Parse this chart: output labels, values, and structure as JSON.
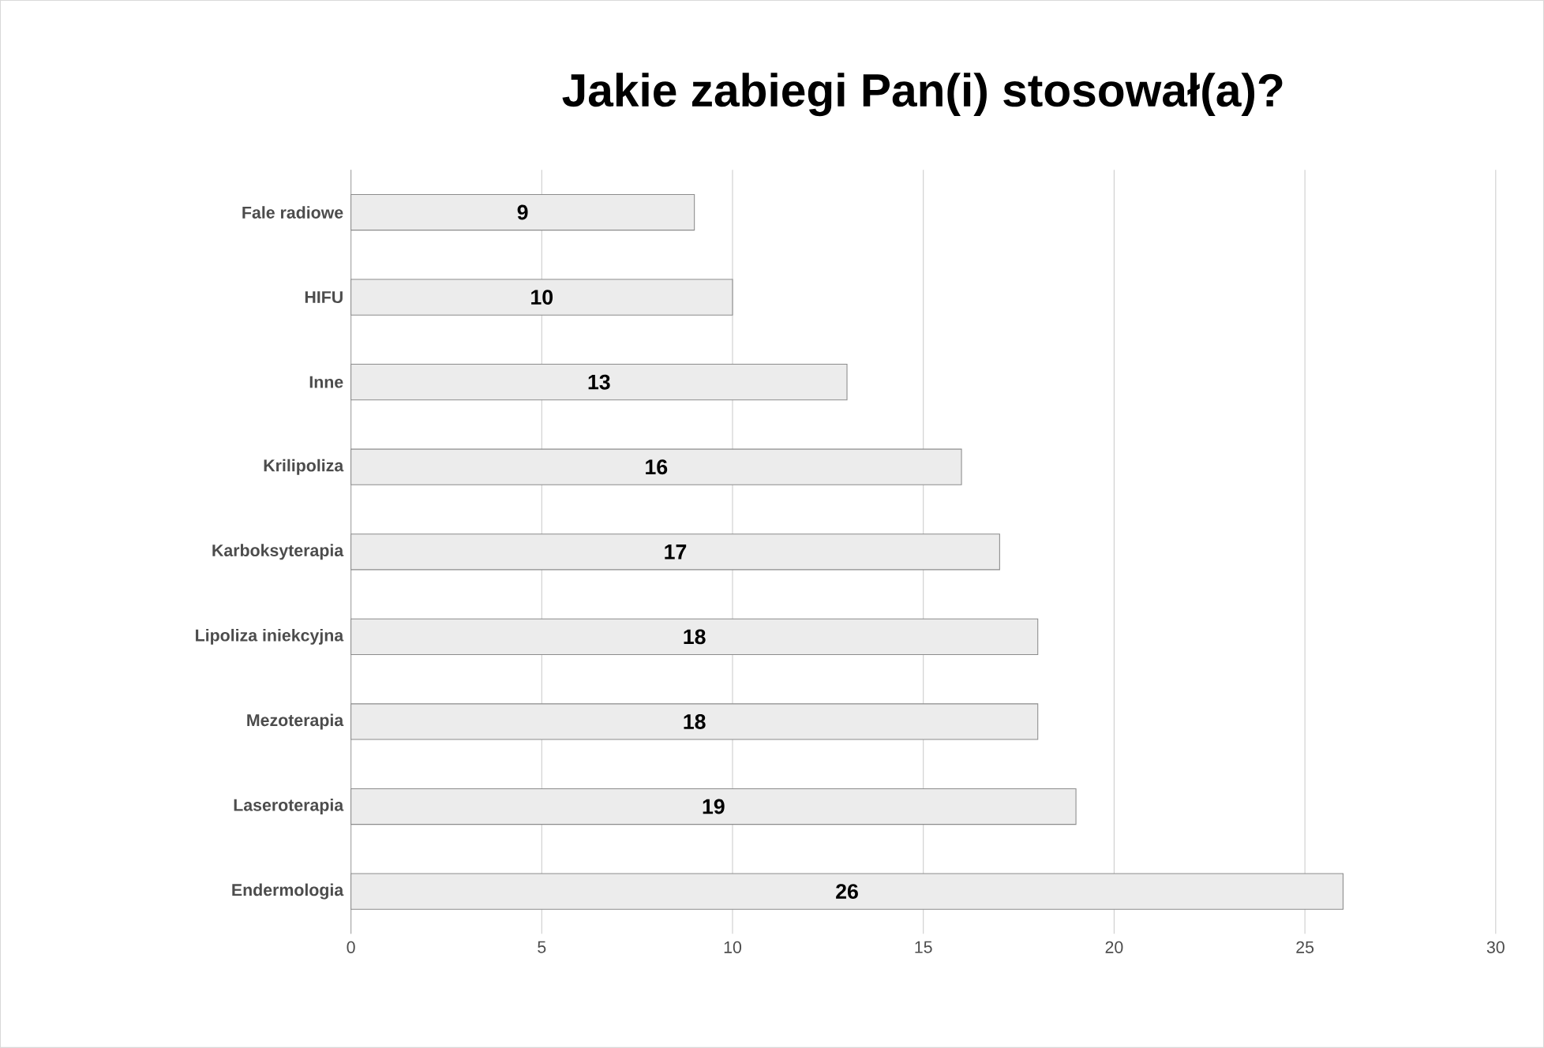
{
  "chart_data": {
    "type": "bar",
    "orientation": "horizontal",
    "title": "Jakie zabiegi Pan(i) stosował(a)?",
    "categories": [
      "Fale radiowe",
      "HIFU",
      "Inne",
      "Krilipoliza",
      "Karboksyterapia",
      "Lipoliza iniekcyjna",
      "Mezoterapia",
      "Laseroterapia",
      "Endermologia"
    ],
    "values": [
      9,
      10,
      13,
      16,
      17,
      18,
      18,
      19,
      26
    ],
    "color": "#ececec",
    "xlim": [
      0,
      30
    ],
    "xticks": [
      0,
      5,
      10,
      15,
      20,
      25,
      30
    ],
    "grid": "x",
    "data_labels": true
  }
}
